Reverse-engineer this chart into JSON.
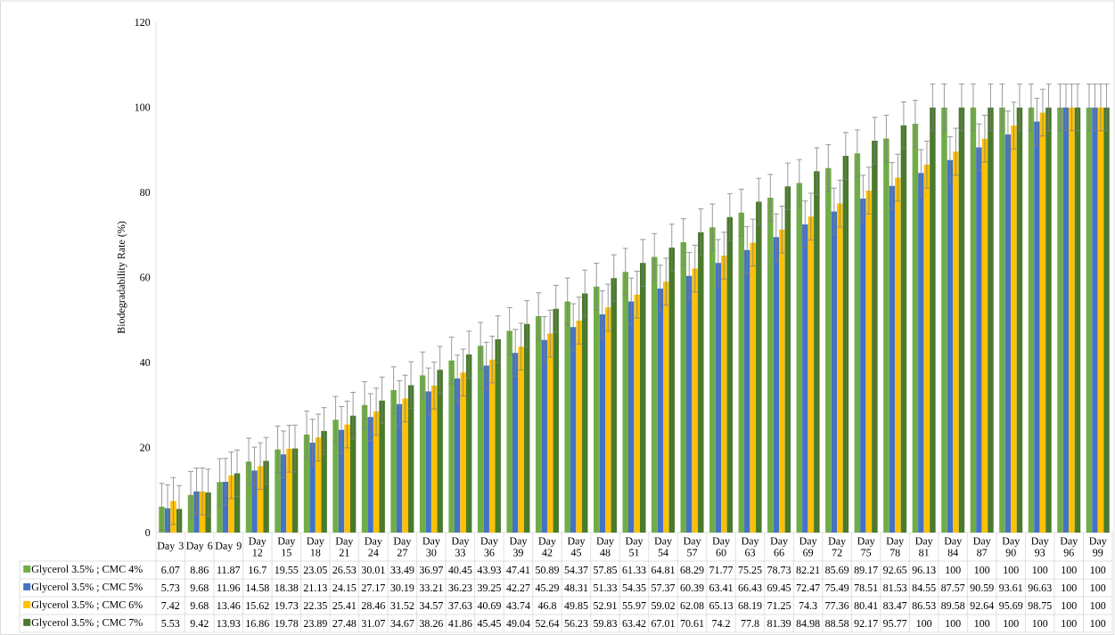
{
  "chart_data": {
    "type": "bar",
    "ylabel": "Biodegradability Rate (%)",
    "categories": [
      "Day 3",
      "Day 6",
      "Day 9",
      "Day 12",
      "Day 15",
      "Day 18",
      "Day 21",
      "Day 24",
      "Day 27",
      "Day 30",
      "Day 33",
      "Day 36",
      "Day 39",
      "Day 42",
      "Day 45",
      "Day 48",
      "Day 51",
      "Day 54",
      "Day 57",
      "Day 60",
      "Day 63",
      "Day 66",
      "Day 69",
      "Day 72",
      "Day 75",
      "Day 78",
      "Day 81",
      "Day 84",
      "Day 87",
      "Day 90",
      "Day 93",
      "Day 96",
      "Day 99"
    ],
    "series": [
      {
        "name": "Glycerol 3.5% ; CMC 4%",
        "color": "#70ad47",
        "values": [
          6.07,
          8.86,
          11.87,
          16.7,
          19.55,
          23.05,
          26.53,
          30.01,
          33.49,
          36.97,
          40.45,
          43.93,
          47.41,
          50.89,
          54.37,
          57.85,
          61.33,
          64.81,
          68.29,
          71.77,
          75.25,
          78.73,
          82.21,
          85.69,
          89.17,
          92.65,
          96.13,
          100,
          100,
          100,
          100,
          100,
          100
        ],
        "value_labels": [
          "6.07",
          "8.86",
          "11.87",
          "16.7",
          "19.55",
          "23.05",
          "26.53",
          "30.01",
          "33.49",
          "36.97",
          "40.45",
          "43.93",
          "47.41",
          "50.89",
          "54.37",
          "57.85",
          "61.33",
          "64.81",
          "68.29",
          "71.77",
          "75.25",
          "78.73",
          "82.21",
          "85.69",
          "89.17",
          "92.65",
          "96.13",
          "100",
          "100",
          "100",
          "100",
          "100",
          "100"
        ],
        "errors": [
          5.5,
          5.5,
          5.5,
          5.5,
          5.5,
          5.5,
          5.5,
          5.5,
          5.5,
          5.5,
          5.5,
          5.5,
          5.5,
          5.5,
          5.5,
          5.5,
          5.5,
          5.5,
          5.5,
          5.5,
          5.5,
          5.5,
          5.5,
          5.5,
          5.5,
          5.5,
          5.5,
          5.5,
          5.5,
          5.5,
          5.5,
          5.5,
          5.5
        ]
      },
      {
        "name": "Glycerol 3.5% ; CMC 5%",
        "color": "#4472c4",
        "values": [
          5.73,
          9.68,
          11.96,
          14.58,
          18.38,
          21.13,
          24.15,
          27.17,
          30.19,
          33.21,
          36.23,
          39.25,
          42.27,
          45.29,
          48.31,
          51.33,
          54.35,
          57.37,
          60.39,
          63.41,
          66.43,
          69.45,
          72.47,
          75.49,
          78.51,
          81.53,
          84.55,
          87.57,
          90.59,
          93.61,
          96.63,
          100,
          100
        ],
        "value_labels": [
          "5.73",
          "9.68",
          "11.96",
          "14.58",
          "18.38",
          "21.13",
          "24.15",
          "27.17",
          "30.19",
          "33.21",
          "36.23",
          "39.25",
          "42.27",
          "45.29",
          "48.31",
          "51.33",
          "54.35",
          "57.37",
          "60.39",
          "63.41",
          "66.43",
          "69.45",
          "72.47",
          "75.49",
          "78.51",
          "81.53",
          "84.55",
          "87.57",
          "90.59",
          "93.61",
          "96.63",
          "100",
          "100"
        ],
        "errors": [
          5.5,
          5.5,
          5.5,
          5.5,
          5.5,
          5.5,
          5.5,
          5.5,
          5.5,
          5.5,
          5.5,
          5.5,
          5.5,
          5.5,
          5.5,
          5.5,
          5.5,
          5.5,
          5.5,
          5.5,
          5.5,
          5.5,
          5.5,
          5.5,
          5.5,
          5.5,
          5.5,
          5.5,
          5.5,
          5.5,
          5.5,
          5.5,
          5.5
        ]
      },
      {
        "name": "Glycerol 3.5% ; CMC 6%",
        "color": "#ffc000",
        "values": [
          7.42,
          9.68,
          13.46,
          15.62,
          19.73,
          22.35,
          25.41,
          28.46,
          31.52,
          34.57,
          37.63,
          40.69,
          43.74,
          46.8,
          49.85,
          52.91,
          55.97,
          59.02,
          62.08,
          65.13,
          68.19,
          71.25,
          74.3,
          77.36,
          80.41,
          83.47,
          86.53,
          89.58,
          92.64,
          95.69,
          98.75,
          100,
          100
        ],
        "value_labels": [
          "7.42",
          "9.68",
          "13.46",
          "15.62",
          "19.73",
          "22.35",
          "25.41",
          "28.46",
          "31.52",
          "34.57",
          "37.63",
          "40.69",
          "43.74",
          "46.8",
          "49.85",
          "52.91",
          "55.97",
          "59.02",
          "62.08",
          "65.13",
          "68.19",
          "71.25",
          "74.3",
          "77.36",
          "80.41",
          "83.47",
          "86.53",
          "89.58",
          "92.64",
          "95.69",
          "98.75",
          "100",
          "100"
        ],
        "errors": [
          5.5,
          5.5,
          5.5,
          5.5,
          5.5,
          5.5,
          5.5,
          5.5,
          5.5,
          5.5,
          5.5,
          5.5,
          5.5,
          5.5,
          5.5,
          5.5,
          5.5,
          5.5,
          5.5,
          5.5,
          5.5,
          5.5,
          5.5,
          5.5,
          5.5,
          5.5,
          5.5,
          5.5,
          5.5,
          5.5,
          5.5,
          5.5,
          5.5
        ]
      },
      {
        "name": "Glycerol 3.5% ; CMC 7%",
        "color": "#4a7a2c",
        "values": [
          5.53,
          9.42,
          13.93,
          16.86,
          19.78,
          23.89,
          27.48,
          31.07,
          34.67,
          38.26,
          41.86,
          45.45,
          49.04,
          52.64,
          56.23,
          59.83,
          63.42,
          67.01,
          70.61,
          74.2,
          77.8,
          81.39,
          84.98,
          88.58,
          92.17,
          95.77,
          100,
          100,
          100,
          100,
          100,
          100,
          100
        ],
        "value_labels": [
          "5.53",
          "9.42",
          "13.93",
          "16.86",
          "19.78",
          "23.89",
          "27.48",
          "31.07",
          "34.67",
          "38.26",
          "41.86",
          "45.45",
          "49.04",
          "52.64",
          "56.23",
          "59.83",
          "63.42",
          "67.01",
          "70.61",
          "74.2",
          "77.8",
          "81.39",
          "84.98",
          "88.58",
          "92.17",
          "95.77",
          "100",
          "100",
          "100",
          "100",
          "100",
          "100",
          "100"
        ],
        "errors": [
          5.5,
          5.5,
          5.5,
          5.5,
          5.5,
          5.5,
          5.5,
          5.5,
          5.5,
          5.5,
          5.5,
          5.5,
          5.5,
          5.5,
          5.5,
          5.5,
          5.5,
          5.5,
          5.5,
          5.5,
          5.5,
          5.5,
          5.5,
          5.5,
          5.5,
          5.5,
          5.5,
          5.5,
          5.5,
          5.5,
          5.5,
          5.5,
          5.5
        ]
      }
    ],
    "ylim": [
      0,
      120
    ],
    "yticks": [
      0,
      20,
      40,
      60,
      80,
      100,
      120
    ],
    "legend": "bottom"
  }
}
